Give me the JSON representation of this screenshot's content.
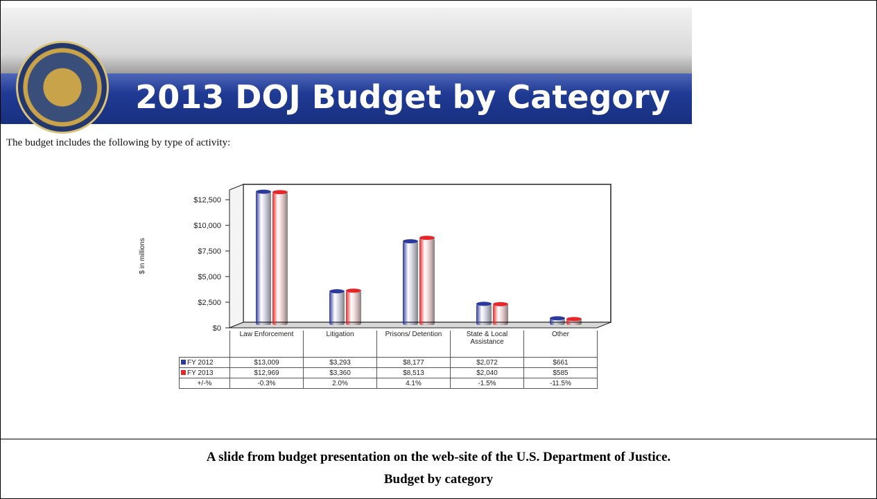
{
  "chart_data": {
    "type": "bar",
    "title": "2013 DOJ Budget by Category",
    "subtitle": "The budget includes the following by type of activity:",
    "y_label": "$ in millions",
    "categories": [
      "Law Enforcement",
      "Litigation",
      "Prisons/ Detention",
      "State & Local Assistance",
      "Other"
    ],
    "series": [
      {
        "name": "FY 2012",
        "color": "#2b3a9c",
        "values": [
          13009,
          3293,
          8177,
          2072,
          661
        ],
        "value_labels": [
          "$13,009",
          "$3,293",
          "$8,177",
          "$2,072",
          "$661"
        ]
      },
      {
        "name": "FY 2013",
        "color": "#e5262b",
        "values": [
          12969,
          3360,
          8513,
          2040,
          585
        ],
        "value_labels": [
          "$12,969",
          "$3,360",
          "$8,513",
          "$2,040",
          "$585"
        ]
      }
    ],
    "change": {
      "name": "+/-%",
      "values": [
        -0.3,
        2.0,
        4.1,
        -1.5,
        -11.5
      ],
      "value_labels": [
        "-0.3%",
        "2.0%",
        "4.1%",
        "-1.5%",
        "-11.5%"
      ]
    },
    "ylim": [
      0,
      14000
    ],
    "yticks": [
      {
        "value": 0,
        "label": "$0"
      },
      {
        "value": 2500,
        "label": "$2,500"
      },
      {
        "value": 5000,
        "label": "$5,000"
      },
      {
        "value": 7500,
        "label": "$7,500"
      },
      {
        "value": 10000,
        "label": "$10,000"
      },
      {
        "value": 12500,
        "label": "$12,500"
      }
    ],
    "grid": false
  },
  "caption": {
    "line1": "A slide from budget presentation on the web-site of the U.S. Department of Justice.",
    "line2": "Budget by category"
  }
}
